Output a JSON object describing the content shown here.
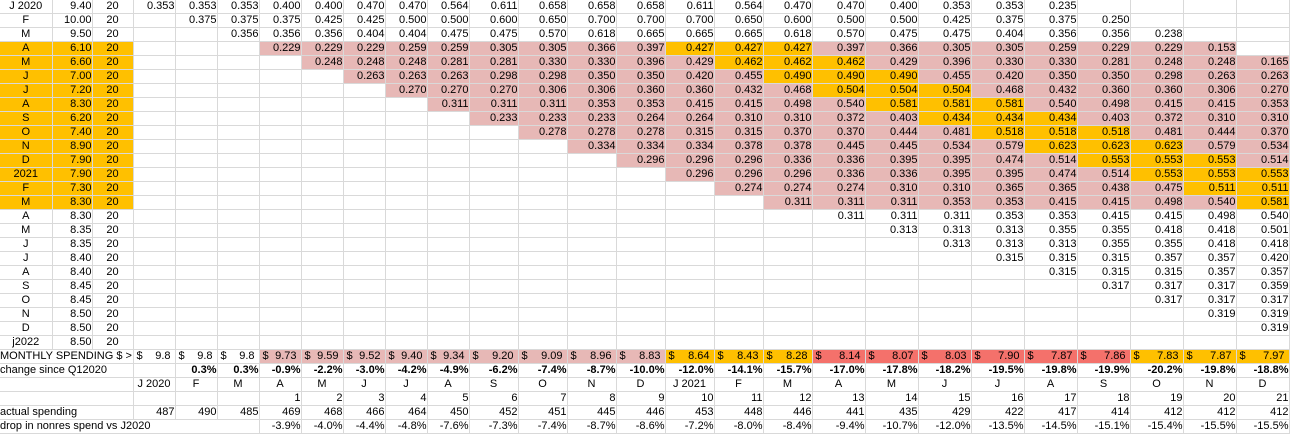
{
  "colors": {
    "orange": "#ffc000",
    "pink": "#e7b8b6",
    "red": "#f4716b",
    "gridline": "#d9d9d9"
  },
  "sheet": {
    "rows": [
      {
        "label": "J 2020",
        "spend": "9.40",
        "n": "20",
        "start": 1,
        "label_bg": "",
        "cell_bg": "",
        "orange": null,
        "values": [
          "0.353",
          "0.353",
          "0.353",
          "0.400",
          "0.400",
          "0.470",
          "0.470",
          "0.564",
          "0.611",
          "0.658",
          "0.658",
          "0.658",
          "0.611",
          "0.564",
          "0.470",
          "0.470",
          "0.400",
          "0.353",
          "0.353",
          "0.235"
        ]
      },
      {
        "label": "F",
        "spend": "10.00",
        "n": "20",
        "start": 2,
        "label_bg": "",
        "cell_bg": "",
        "orange": null,
        "values": [
          "0.375",
          "0.375",
          "0.375",
          "0.425",
          "0.425",
          "0.500",
          "0.500",
          "0.600",
          "0.650",
          "0.700",
          "0.700",
          "0.700",
          "0.650",
          "0.600",
          "0.500",
          "0.500",
          "0.425",
          "0.375",
          "0.375",
          "0.250"
        ]
      },
      {
        "label": "M",
        "spend": "9.50",
        "n": "20",
        "start": 3,
        "label_bg": "",
        "cell_bg": "",
        "orange": null,
        "values": [
          "0.356",
          "0.356",
          "0.356",
          "0.404",
          "0.404",
          "0.475",
          "0.475",
          "0.570",
          "0.618",
          "0.665",
          "0.665",
          "0.665",
          "0.618",
          "0.570",
          "0.475",
          "0.475",
          "0.404",
          "0.356",
          "0.356",
          "0.238"
        ]
      },
      {
        "label": "A",
        "spend": "6.10",
        "n": "20",
        "start": 4,
        "label_bg": "orange",
        "cell_bg": "pink",
        "orange": [
          9,
          11
        ],
        "values": [
          "0.229",
          "0.229",
          "0.229",
          "0.259",
          "0.259",
          "0.305",
          "0.305",
          "0.366",
          "0.397",
          "0.427",
          "0.427",
          "0.427",
          "0.397",
          "0.366",
          "0.305",
          "0.305",
          "0.259",
          "0.229",
          "0.229",
          "0.153"
        ]
      },
      {
        "label": "M",
        "spend": "6.60",
        "n": "20",
        "start": 5,
        "label_bg": "orange",
        "cell_bg": "pink",
        "orange": [
          9,
          11
        ],
        "values": [
          "0.248",
          "0.248",
          "0.248",
          "0.281",
          "0.281",
          "0.330",
          "0.330",
          "0.396",
          "0.429",
          "0.462",
          "0.462",
          "0.462",
          "0.429",
          "0.396",
          "0.330",
          "0.330",
          "0.281",
          "0.248",
          "0.248",
          "0.165"
        ]
      },
      {
        "label": "J",
        "spend": "7.00",
        "n": "20",
        "start": 6,
        "label_bg": "orange",
        "cell_bg": "pink",
        "orange": [
          9,
          11
        ],
        "values": [
          "0.263",
          "0.263",
          "0.263",
          "0.298",
          "0.298",
          "0.350",
          "0.350",
          "0.420",
          "0.455",
          "0.490",
          "0.490",
          "0.490",
          "0.455",
          "0.420",
          "0.350",
          "0.350",
          "0.298",
          "0.263",
          "0.263"
        ]
      },
      {
        "label": "J",
        "spend": "7.20",
        "n": "20",
        "start": 7,
        "label_bg": "orange",
        "cell_bg": "pink",
        "orange": [
          9,
          11
        ],
        "values": [
          "0.270",
          "0.270",
          "0.270",
          "0.306",
          "0.306",
          "0.360",
          "0.360",
          "0.432",
          "0.468",
          "0.504",
          "0.504",
          "0.504",
          "0.468",
          "0.432",
          "0.360",
          "0.360",
          "0.306",
          "0.270"
        ]
      },
      {
        "label": "A",
        "spend": "8.30",
        "n": "20",
        "start": 8,
        "label_bg": "orange",
        "cell_bg": "pink",
        "orange": [
          9,
          11
        ],
        "values": [
          "0.311",
          "0.311",
          "0.311",
          "0.353",
          "0.353",
          "0.415",
          "0.415",
          "0.498",
          "0.540",
          "0.581",
          "0.581",
          "0.581",
          "0.540",
          "0.498",
          "0.415",
          "0.415",
          "0.353"
        ]
      },
      {
        "label": "S",
        "spend": "6.20",
        "n": "20",
        "start": 9,
        "label_bg": "orange",
        "cell_bg": "pink",
        "orange": [
          9,
          11
        ],
        "values": [
          "0.233",
          "0.233",
          "0.233",
          "0.264",
          "0.264",
          "0.310",
          "0.310",
          "0.372",
          "0.403",
          "0.434",
          "0.434",
          "0.434",
          "0.403",
          "0.372",
          "0.310",
          "0.310"
        ]
      },
      {
        "label": "O",
        "spend": "7.40",
        "n": "20",
        "start": 10,
        "label_bg": "orange",
        "cell_bg": "pink",
        "orange": [
          9,
          11
        ],
        "values": [
          "0.278",
          "0.278",
          "0.278",
          "0.315",
          "0.315",
          "0.370",
          "0.370",
          "0.444",
          "0.481",
          "0.518",
          "0.518",
          "0.518",
          "0.481",
          "0.444",
          "0.370"
        ]
      },
      {
        "label": "N",
        "spend": "8.90",
        "n": "20",
        "start": 11,
        "label_bg": "orange",
        "cell_bg": "pink",
        "orange": [
          9,
          11
        ],
        "values": [
          "0.334",
          "0.334",
          "0.334",
          "0.378",
          "0.378",
          "0.445",
          "0.445",
          "0.534",
          "0.579",
          "0.623",
          "0.623",
          "0.623",
          "0.579",
          "0.534"
        ]
      },
      {
        "label": "D",
        "spend": "7.90",
        "n": "20",
        "start": 12,
        "label_bg": "orange",
        "cell_bg": "pink",
        "orange": [
          9,
          11
        ],
        "values": [
          "0.296",
          "0.296",
          "0.296",
          "0.336",
          "0.336",
          "0.395",
          "0.395",
          "0.474",
          "0.514",
          "0.553",
          "0.553",
          "0.553",
          "0.514"
        ]
      },
      {
        "label": "2021",
        "spend": "7.90",
        "n": "20",
        "start": 13,
        "label_bg": "orange",
        "cell_bg": "pink",
        "orange": [
          9,
          11
        ],
        "values": [
          "0.296",
          "0.296",
          "0.296",
          "0.336",
          "0.336",
          "0.395",
          "0.395",
          "0.474",
          "0.514",
          "0.553",
          "0.553",
          "0.553"
        ]
      },
      {
        "label": "F",
        "spend": "7.30",
        "n": "20",
        "start": 14,
        "label_bg": "orange",
        "cell_bg": "pink",
        "orange": [
          9,
          10
        ],
        "values": [
          "0.274",
          "0.274",
          "0.274",
          "0.310",
          "0.310",
          "0.365",
          "0.365",
          "0.438",
          "0.475",
          "0.511",
          "0.511"
        ]
      },
      {
        "label": "M",
        "spend": "8.30",
        "n": "20",
        "start": 15,
        "label_bg": "orange",
        "cell_bg": "pink",
        "orange": [
          9,
          9
        ],
        "values": [
          "0.311",
          "0.311",
          "0.311",
          "0.353",
          "0.353",
          "0.415",
          "0.415",
          "0.498",
          "0.540",
          "0.581"
        ]
      },
      {
        "label": "A",
        "spend": "8.30",
        "n": "20",
        "start": 16,
        "label_bg": "",
        "cell_bg": "",
        "orange": null,
        "values": [
          "0.311",
          "0.311",
          "0.311",
          "0.353",
          "0.353",
          "0.415",
          "0.415",
          "0.498",
          "0.540"
        ]
      },
      {
        "label": "M",
        "spend": "8.35",
        "n": "20",
        "start": 17,
        "label_bg": "",
        "cell_bg": "",
        "orange": null,
        "values": [
          "0.313",
          "0.313",
          "0.313",
          "0.355",
          "0.355",
          "0.418",
          "0.418",
          "0.501"
        ]
      },
      {
        "label": "J",
        "spend": "8.35",
        "n": "20",
        "start": 18,
        "label_bg": "",
        "cell_bg": "",
        "orange": null,
        "values": [
          "0.313",
          "0.313",
          "0.313",
          "0.355",
          "0.355",
          "0.418",
          "0.418"
        ]
      },
      {
        "label": "J",
        "spend": "8.40",
        "n": "20",
        "start": 19,
        "label_bg": "",
        "cell_bg": "",
        "orange": null,
        "values": [
          "0.315",
          "0.315",
          "0.315",
          "0.357",
          "0.357",
          "0.420"
        ]
      },
      {
        "label": "A",
        "spend": "8.40",
        "n": "20",
        "start": 20,
        "label_bg": "",
        "cell_bg": "",
        "orange": null,
        "values": [
          "0.315",
          "0.315",
          "0.315",
          "0.357",
          "0.357"
        ]
      },
      {
        "label": "S",
        "spend": "8.45",
        "n": "20",
        "start": 21,
        "label_bg": "",
        "cell_bg": "",
        "orange": null,
        "values": [
          "0.317",
          "0.317",
          "0.317",
          "0.359"
        ]
      },
      {
        "label": "O",
        "spend": "8.45",
        "n": "20",
        "start": 22,
        "label_bg": "",
        "cell_bg": "",
        "orange": null,
        "values": [
          "0.317",
          "0.317",
          "0.317"
        ]
      },
      {
        "label": "N",
        "spend": "8.50",
        "n": "20",
        "start": 23,
        "label_bg": "",
        "cell_bg": "",
        "orange": null,
        "values": [
          "0.319",
          "0.319"
        ]
      },
      {
        "label": "D",
        "spend": "8.50",
        "n": "20",
        "start": 24,
        "label_bg": "",
        "cell_bg": "",
        "orange": null,
        "values": [
          "0.319"
        ]
      },
      {
        "label": "j2022",
        "spend": "8.50",
        "n": "20",
        "start": 25,
        "label_bg": "",
        "cell_bg": "",
        "orange": null,
        "values": []
      }
    ]
  },
  "footer": {
    "rows": [
      {
        "name": "monthly-spending",
        "label": "MONTHLY SPENDING $ >",
        "span": 3,
        "type": "money",
        "cells": [
          {
            "v": "9.8",
            "bg": ""
          },
          {
            "v": "9.8",
            "bg": ""
          },
          {
            "v": "9.8",
            "bg": ""
          },
          {
            "v": "9.73",
            "bg": "pink"
          },
          {
            "v": "9.59",
            "bg": "pink"
          },
          {
            "v": "9.52",
            "bg": "pink"
          },
          {
            "v": "9.40",
            "bg": "pink"
          },
          {
            "v": "9.34",
            "bg": "pink"
          },
          {
            "v": "9.20",
            "bg": "pink"
          },
          {
            "v": "9.09",
            "bg": "pink"
          },
          {
            "v": "8.96",
            "bg": "pink"
          },
          {
            "v": "8.83",
            "bg": "pink"
          },
          {
            "v": "8.64",
            "bg": "orange"
          },
          {
            "v": "8.43",
            "bg": "orange"
          },
          {
            "v": "8.28",
            "bg": "orange"
          },
          {
            "v": "8.14",
            "bg": "red"
          },
          {
            "v": "8.07",
            "bg": "red"
          },
          {
            "v": "8.03",
            "bg": "red"
          },
          {
            "v": "7.90",
            "bg": "red"
          },
          {
            "v": "7.87",
            "bg": "red"
          },
          {
            "v": "7.86",
            "bg": "red"
          },
          {
            "v": "7.83",
            "bg": "orange"
          },
          {
            "v": "7.87",
            "bg": "orange"
          },
          {
            "v": "7.97",
            "bg": "orange"
          }
        ]
      },
      {
        "name": "change-since",
        "label": "change since Q12020",
        "span": 3,
        "type": "boldpct",
        "cells": [
          "",
          "0.3%",
          "0.3%",
          "-0.9%",
          "-2.2%",
          "-3.0%",
          "-4.2%",
          "-4.9%",
          "-6.2%",
          "-7.4%",
          "-8.7%",
          "-10.0%",
          "-12.0%",
          "-14.1%",
          "-15.7%",
          "-17.0%",
          "-17.8%",
          "-18.2%",
          "-19.5%",
          "-19.8%",
          "-19.9%",
          "-20.2%",
          "-19.8%",
          "-18.8%"
        ]
      },
      {
        "name": "month-header",
        "label": "",
        "span": 3,
        "type": "month",
        "cells": [
          "J 2020",
          "F",
          "M",
          "A",
          "M",
          "J",
          "J",
          "A",
          "S",
          "O",
          "N",
          "D",
          "J 2021",
          "F",
          "M",
          "A",
          "M",
          "J",
          "J",
          "A",
          "S",
          "O",
          "N",
          "D"
        ]
      },
      {
        "name": "col-numbers",
        "label": "",
        "span": 3,
        "type": "num",
        "cells": [
          "",
          "",
          "",
          "1",
          "2",
          "3",
          "4",
          "5",
          "6",
          "7",
          "8",
          "9",
          "10",
          "11",
          "12",
          "13",
          "14",
          "15",
          "16",
          "17",
          "18",
          "19",
          "20",
          "21"
        ]
      },
      {
        "name": "actual-spending",
        "label": "actual spending",
        "span": 3,
        "type": "num",
        "cells": [
          "487",
          "490",
          "485",
          "469",
          "468",
          "466",
          "464",
          "450",
          "452",
          "451",
          "445",
          "446",
          "453",
          "448",
          "446",
          "441",
          "435",
          "429",
          "422",
          "417",
          "414",
          "412",
          "412",
          "412"
        ]
      },
      {
        "name": "drop-nonres",
        "label": "drop in nonres spend vs J2020",
        "span": 6,
        "type": "num",
        "cells": [
          "-3.9%",
          "-4.0%",
          "-4.4%",
          "-4.8%",
          "-7.6%",
          "-7.3%",
          "-7.4%",
          "-8.7%",
          "-8.6%",
          "-7.2%",
          "-8.0%",
          "-8.4%",
          "-9.4%",
          "-10.7%",
          "-12.0%",
          "-13.5%",
          "-14.5%",
          "-15.1%",
          "-15.4%",
          "-15.5%",
          "-15.5%"
        ]
      }
    ]
  }
}
